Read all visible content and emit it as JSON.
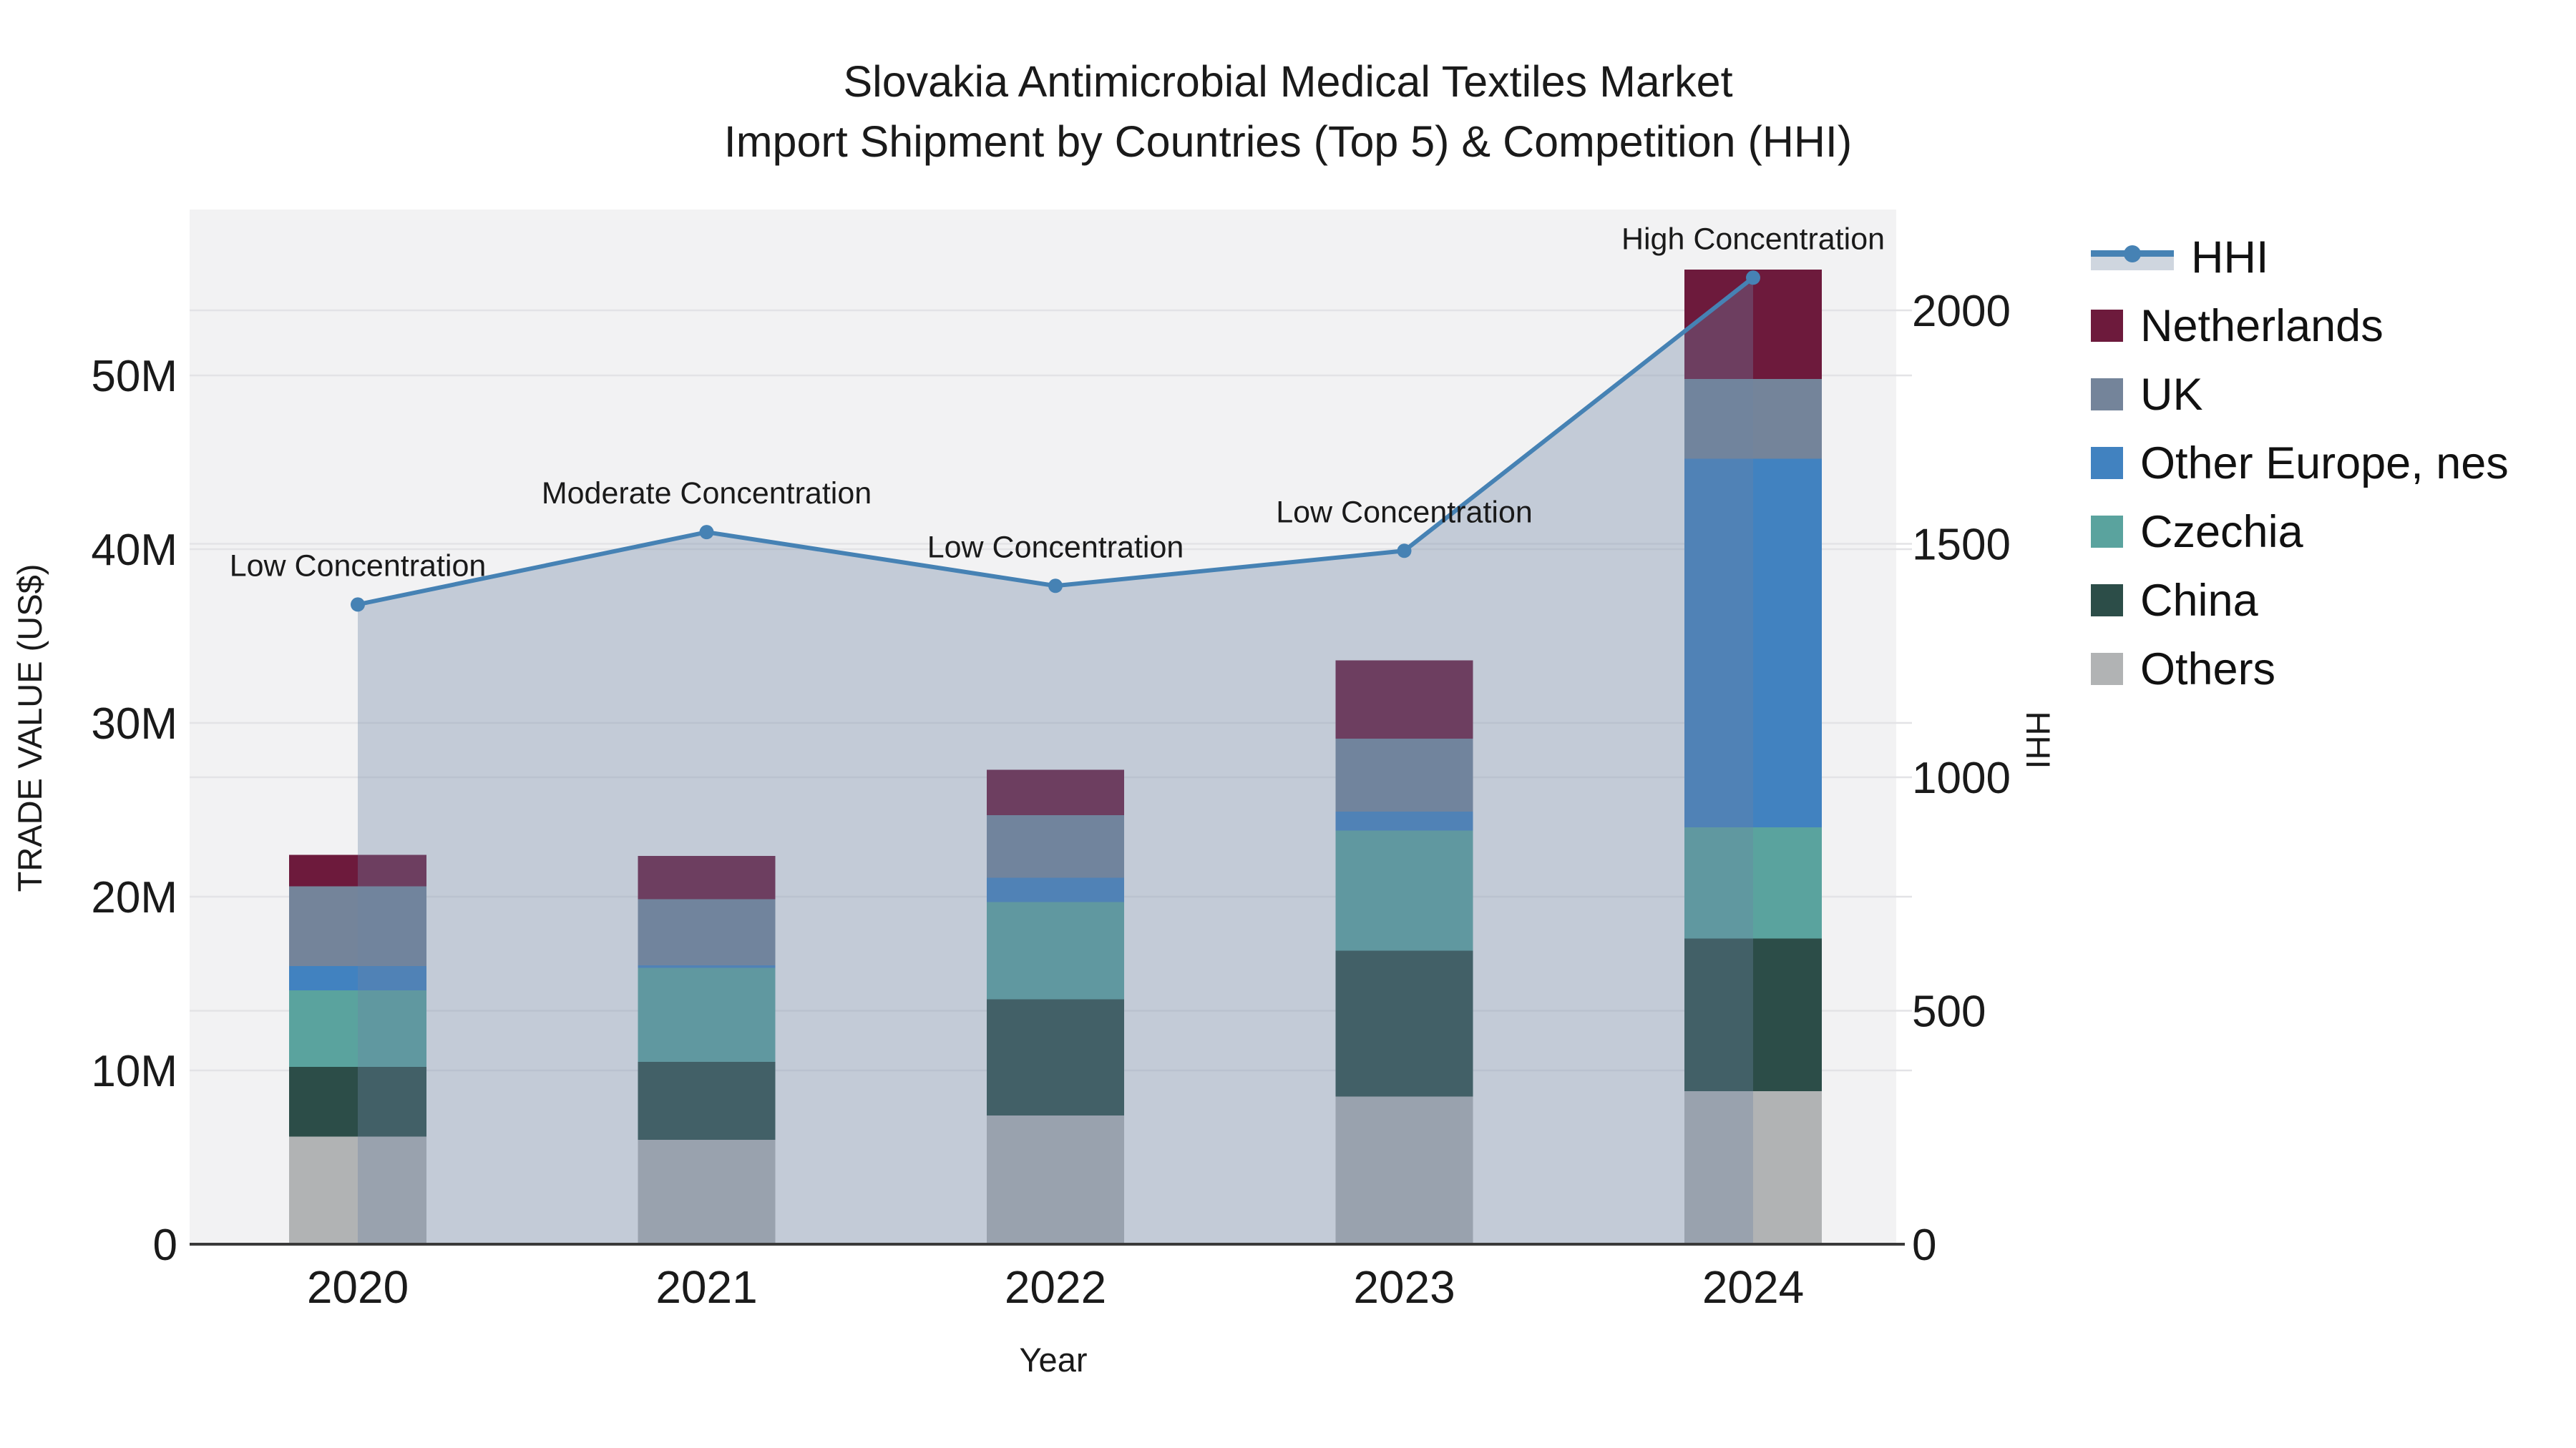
{
  "title": {
    "line1": "Slovakia Antimicrobial Medical Textiles Market",
    "line2": "Import Shipment by Countries (Top 5) & Competition (HHI)"
  },
  "axes": {
    "x": {
      "title": "Year"
    },
    "y_left": {
      "title": "TRADE VALUE (US$)",
      "tick_labels": [
        "0",
        "10M",
        "20M",
        "30M",
        "40M",
        "50M"
      ],
      "tick_values_M": [
        0,
        10,
        20,
        30,
        40,
        50
      ]
    },
    "y_right": {
      "title": "HHI",
      "tick_labels": [
        "0",
        "500",
        "1000",
        "1500",
        "2000"
      ],
      "tick_values": [
        0,
        500,
        1000,
        1500,
        2000
      ]
    }
  },
  "chart_data": {
    "type": "stacked-bar + line (secondary axis)",
    "title": "Slovakia Antimicrobial Medical Textiles Market Import Shipment by Countries (Top 5) & Competition (HHI)",
    "xlabel": "Year",
    "ylabel_left": "TRADE VALUE (US$)",
    "ylabel_right": "HHI",
    "categories": [
      "2020",
      "2021",
      "2022",
      "2023",
      "2024"
    ],
    "values_unit": "millions of US$",
    "ylim_left_M": [
      0,
      59.5
    ],
    "ylim_right": [
      0,
      2215
    ],
    "grid": "on",
    "legend_position": "right",
    "series": [
      {
        "name": "Netherlands",
        "color": "#6D1A3C",
        "values": [
          1.8,
          2.5,
          2.6,
          4.5,
          6.3
        ]
      },
      {
        "name": "UK",
        "color": "#74849A",
        "values": [
          4.6,
          3.8,
          3.6,
          4.2,
          4.6
        ]
      },
      {
        "name": "Other Europe, nes",
        "color": "#4182C0",
        "values": [
          1.4,
          0.15,
          1.4,
          1.1,
          21.2
        ]
      },
      {
        "name": "Czechia",
        "color": "#5AA39E",
        "values": [
          4.4,
          5.4,
          5.6,
          6.9,
          6.4
        ]
      },
      {
        "name": "China",
        "color": "#2C4D48",
        "values": [
          4.0,
          4.5,
          6.7,
          8.4,
          8.8
        ]
      },
      {
        "name": "Others",
        "color": "#B1B3B4",
        "values": [
          6.2,
          6.0,
          7.4,
          8.5,
          8.8
        ]
      }
    ],
    "stack_order_bottom_to_top": [
      "Others",
      "China",
      "Czechia",
      "Other Europe, nes",
      "UK",
      "Netherlands"
    ],
    "totals_M": [
      22.4,
      22.4,
      27.3,
      33.6,
      56.1
    ],
    "hhi": {
      "name": "HHI",
      "color": "#4682B4",
      "fill_color": "rgba(108,132,162,0.35)",
      "values": [
        1370,
        1525,
        1410,
        1485,
        2070
      ],
      "annotations": [
        "Low Concentration",
        "Moderate Concentration",
        "Low Concentration",
        "Low Concentration",
        "High Concentration"
      ]
    },
    "style": {
      "plot_bg": "#F2F2F3",
      "figure_bg": "#FFFFFF",
      "grid_color": "#E3E3E6",
      "axis_line": "#3A3A3A",
      "text_color": "#1A1A1A",
      "legend_band": "#CFD6DF"
    }
  }
}
